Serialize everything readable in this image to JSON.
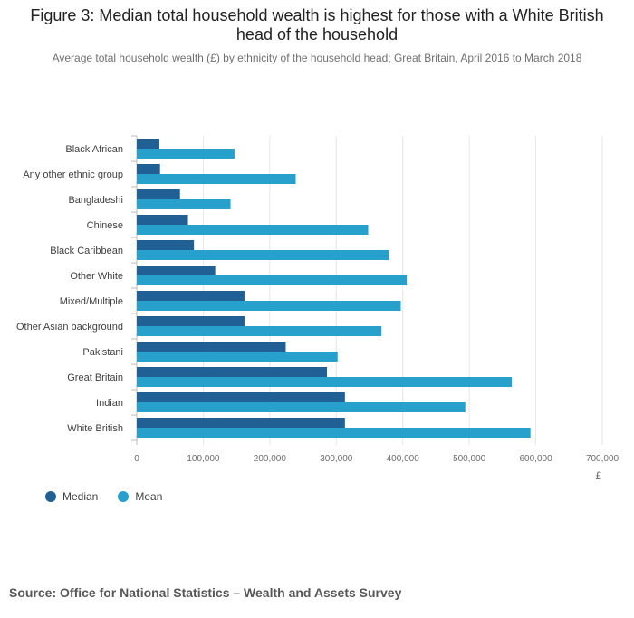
{
  "title": "Figure 3: Median total household wealth is highest for those with a White British head of the household",
  "subtitle": "Average total household wealth (£) by ethnicity of the household head; Great Britain, April 2016 to March 2018",
  "source": "Source: Office for National Statistics – Wealth and Assets Survey",
  "colors": {
    "median": "#206095",
    "mean": "#27a0cc"
  },
  "chart_data": {
    "type": "bar",
    "orientation": "horizontal",
    "categories": [
      "Black African",
      "Any other ethnic group",
      "Bangladeshi",
      "Chinese",
      "Black Caribbean",
      "Other White",
      "Mixed/Multiple",
      "Other Asian background",
      "Pakistani",
      "Great Britain",
      "Indian",
      "White British"
    ],
    "series": [
      {
        "name": "Median",
        "color": "#206095",
        "values": [
          34000,
          35000,
          65000,
          77000,
          86000,
          118000,
          162000,
          162000,
          224000,
          286000,
          313000,
          313000
        ]
      },
      {
        "name": "Mean",
        "color": "#27a0cc",
        "values": [
          147000,
          239000,
          141000,
          348000,
          379000,
          406000,
          397000,
          368000,
          302000,
          564000,
          494000,
          592000
        ]
      }
    ],
    "xlim": [
      0,
      700000
    ],
    "xticks": [
      0,
      100000,
      200000,
      300000,
      400000,
      500000,
      600000,
      700000
    ],
    "xtick_labels": [
      "0",
      "100,000",
      "200,000",
      "300,000",
      "400,000",
      "500,000",
      "600,000",
      "700,000"
    ],
    "xlabel": "£",
    "grid": "vertical",
    "legend_position": "bottom-left"
  }
}
